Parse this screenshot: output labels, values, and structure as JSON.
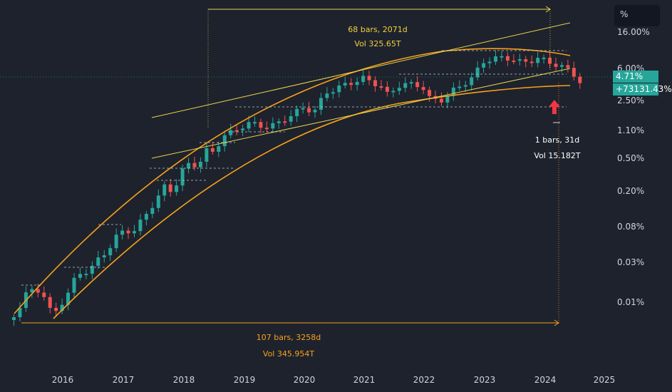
{
  "chart_data": {
    "type": "candlestick",
    "scale": "log",
    "x_tick_labels": [
      "2016",
      "2017",
      "2018",
      "2019",
      "2020",
      "2021",
      "2022",
      "2023",
      "2024",
      "2025"
    ],
    "y_tick_labels": [
      "16.00%",
      "6.00%",
      "2.50%",
      "1.10%",
      "0.50%",
      "0.20%",
      "0.08%",
      "0.03%",
      "0.01%"
    ],
    "current_value_label": "4.71%",
    "change_label": "+73131.43%",
    "annotations": {
      "measure_top_bars": "68 bars, 2071d",
      "measure_top_vol": "Vol 325.65T",
      "measure_bottom_bars": "107 bars, 3258d",
      "measure_bottom_vol": "Vol 345.954T",
      "measure_small_bars": "1 bars, 31d",
      "measure_small_vol": "Vol 15.182T"
    },
    "colors": {
      "up": "#26a69a",
      "down": "#ef5350",
      "arc": "#f7a21b",
      "trend": "#e8d44d",
      "grid": "#2a2e39",
      "arrow": "#f23645"
    }
  },
  "ui": {
    "scale_unit": "%"
  }
}
